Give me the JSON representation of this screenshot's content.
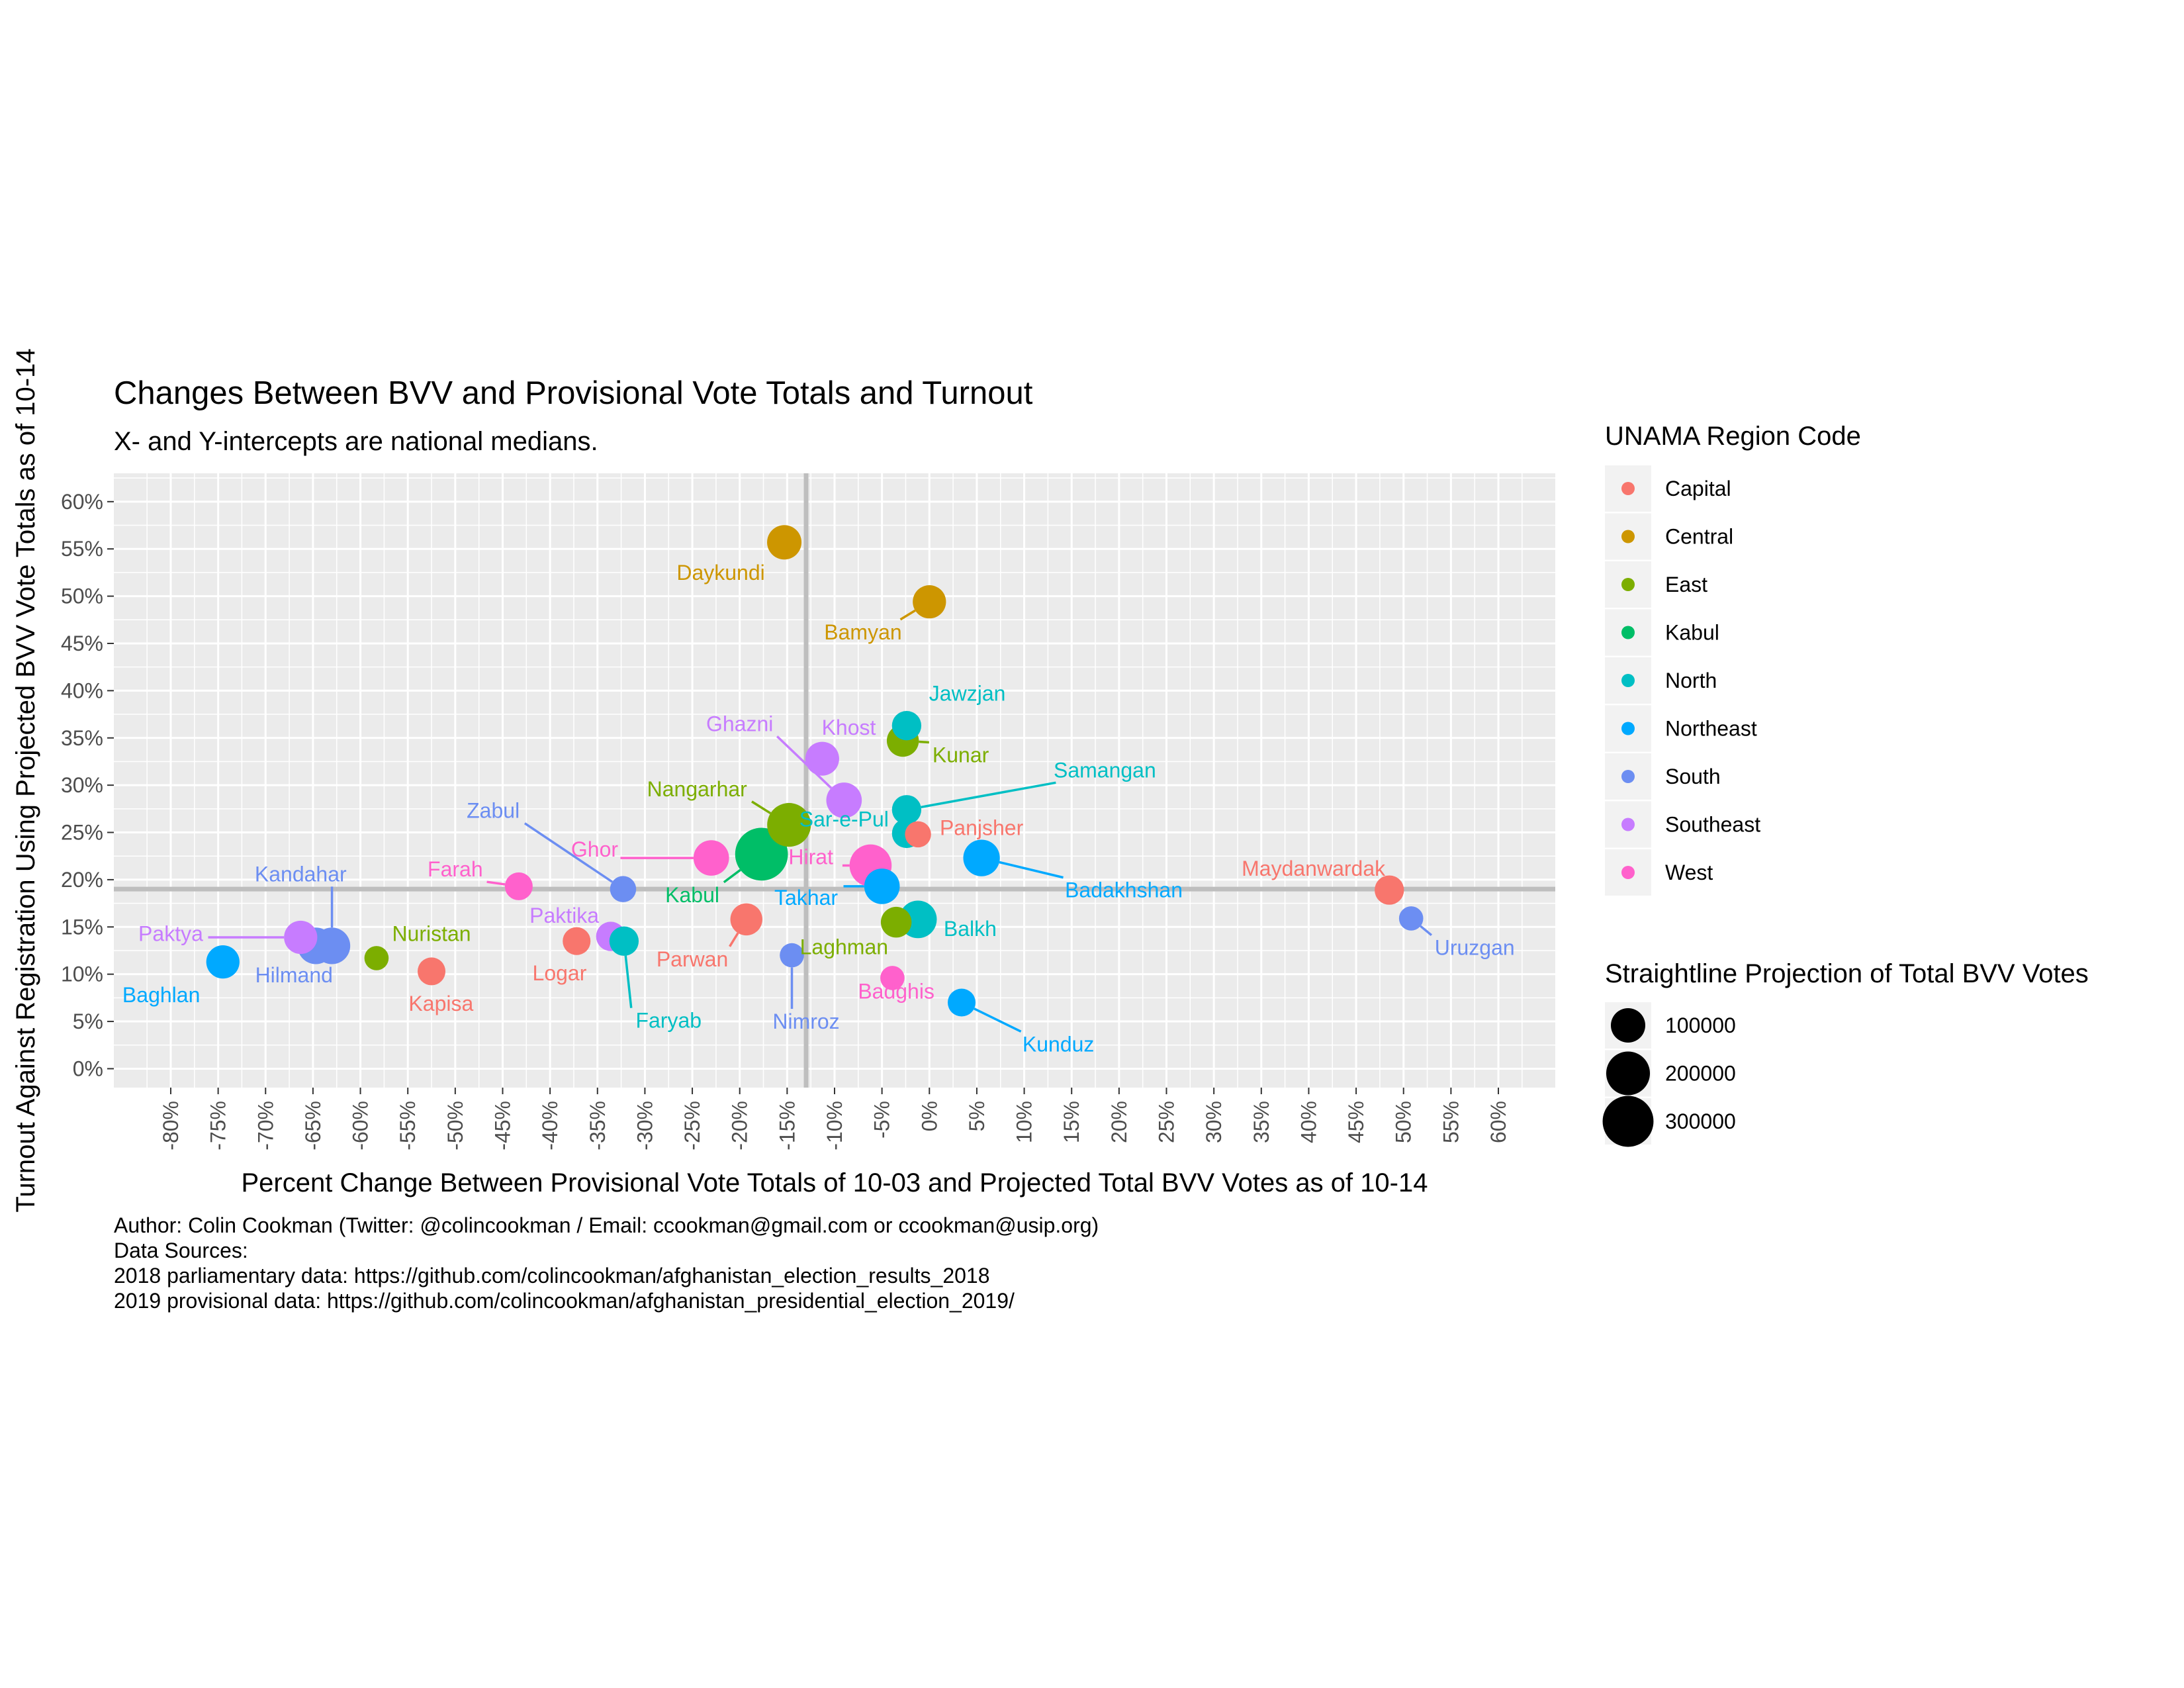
{
  "chart_data": {
    "type": "scatter",
    "title": "Changes Between BVV and Provisional Vote Totals and Turnout",
    "subtitle": "X- and Y-intercepts are national medians.",
    "xlabel": "Percent Change Between Provisional Vote Totals of 10-03 and Projected Total BVV Votes as of 10-14",
    "ylabel": "Turnout Against Registration Using Projected BVV Vote Totals as of 10-14",
    "xlim": [
      -86,
      66
    ],
    "ylim": [
      -2,
      63
    ],
    "x_ticks": [
      -80,
      -75,
      -70,
      -65,
      -60,
      -55,
      -50,
      -45,
      -40,
      -35,
      -30,
      -25,
      -20,
      -15,
      -10,
      -5,
      0,
      5,
      10,
      15,
      20,
      25,
      30,
      35,
      40,
      45,
      50,
      55,
      60
    ],
    "x_tick_labels": [
      "-80%",
      "-75%",
      "-70%",
      "-65%",
      "-60%",
      "-55%",
      "-50%",
      "-45%",
      "-40%",
      "-35%",
      "-30%",
      "-25%",
      "-20%",
      "-15%",
      "-10%",
      "-5%",
      "0%",
      "5%",
      "10%",
      "15%",
      "20%",
      "25%",
      "30%",
      "35%",
      "40%",
      "45%",
      "50%",
      "55%",
      "60%"
    ],
    "y_ticks": [
      0,
      5,
      10,
      15,
      20,
      25,
      30,
      35,
      40,
      45,
      50,
      55,
      60
    ],
    "y_tick_labels": [
      "0%",
      "5%",
      "10%",
      "15%",
      "20%",
      "25%",
      "30%",
      "35%",
      "40%",
      "45%",
      "50%",
      "55%",
      "60%"
    ],
    "x_median": -13,
    "y_median": 19,
    "grid": true,
    "legend_color_title": "UNAMA Region Code",
    "legend_size_title": "Straightline Projection of Total BVV Votes",
    "legend_placement": "right",
    "regions": [
      {
        "name": "Capital",
        "color": "#F8766D"
      },
      {
        "name": "Central",
        "color": "#CD9600"
      },
      {
        "name": "East",
        "color": "#7CAE00"
      },
      {
        "name": "Kabul",
        "color": "#00BE67"
      },
      {
        "name": "North",
        "color": "#00BFC4"
      },
      {
        "name": "Northeast",
        "color": "#00A9FF"
      },
      {
        "name": "South",
        "color": "#6C8EF2"
      },
      {
        "name": "Southeast",
        "color": "#C77CFF"
      },
      {
        "name": "West",
        "color": "#FF61CC"
      }
    ],
    "size_legend": [
      {
        "label": "100000",
        "value": 100000
      },
      {
        "label": "200000",
        "value": 200000
      },
      {
        "label": "300000",
        "value": 300000
      }
    ],
    "points": [
      {
        "name": "Daykundi",
        "region": "Central",
        "x": -15.3,
        "y": 55.7,
        "size": 100000,
        "lx": -22,
        "ly": 52.5
      },
      {
        "name": "Bamyan",
        "region": "Central",
        "x": 0,
        "y": 49.4,
        "size": 90000,
        "lx": -7,
        "ly": 46.2
      },
      {
        "name": "Jawzjan",
        "region": "North",
        "x": -2.4,
        "y": 36.3,
        "size": 60000,
        "lx": 4,
        "ly": 39.7
      },
      {
        "name": "Khost",
        "region": "Southeast",
        "x": -11.3,
        "y": 32.8,
        "size": 95000,
        "lx": -8.5,
        "ly": 36.1
      },
      {
        "name": "Kunar",
        "region": "East",
        "x": -2.8,
        "y": 34.7,
        "size": 80000,
        "lx": 3.3,
        "ly": 33.2
      },
      {
        "name": "Ghazni",
        "region": "Southeast",
        "x": -9,
        "y": 28.4,
        "size": 110000,
        "lx": -20,
        "ly": 36.5
      },
      {
        "name": "Samangan",
        "region": "North",
        "x": -2.4,
        "y": 27.4,
        "size": 60000,
        "lx": 18.5,
        "ly": 31.6
      },
      {
        "name": "Nangarhar",
        "region": "East",
        "x": -14.8,
        "y": 25.8,
        "size": 200000,
        "lx": -24.5,
        "ly": 29.6
      },
      {
        "name": "Sar-e-Pul",
        "region": "North",
        "x": -2.4,
        "y": 24.9,
        "size": 60000,
        "lx": -9,
        "ly": 26.4
      },
      {
        "name": "Panjsher",
        "region": "Capital",
        "x": -1.2,
        "y": 24.8,
        "size": 40000,
        "lx": 5.5,
        "ly": 25.5
      },
      {
        "name": "Zabul",
        "region": "South",
        "x": -32.3,
        "y": 19,
        "size": 40000,
        "lx": -46,
        "ly": 27.3
      },
      {
        "name": "Ghor",
        "region": "West",
        "x": -23,
        "y": 22.3,
        "size": 110000,
        "lx": -35.3,
        "ly": 23.2
      },
      {
        "name": "Hirat",
        "region": "West",
        "x": -6.2,
        "y": 21.5,
        "size": 180000,
        "lx": -12.5,
        "ly": 22.4
      },
      {
        "name": "Badakhshan",
        "region": "Northeast",
        "x": 5.5,
        "y": 22.3,
        "size": 120000,
        "lx": 20.5,
        "ly": 18.9
      },
      {
        "name": "Farah",
        "region": "West",
        "x": -43.3,
        "y": 19.3,
        "size": 50000,
        "lx": -50,
        "ly": 21.1
      },
      {
        "name": "Kandahar",
        "region": "South",
        "x": -63,
        "y": 13,
        "size": 120000,
        "lx": -66.3,
        "ly": 20.6
      },
      {
        "name": "Kabul",
        "region": "Kabul",
        "x": -17.7,
        "y": 22.7,
        "size": 330000,
        "lx": -25,
        "ly": 18.4
      },
      {
        "name": "Takhar",
        "region": "Northeast",
        "x": -5,
        "y": 19.3,
        "size": 110000,
        "lx": -13,
        "ly": 18.1
      },
      {
        "name": "Maydanwardak",
        "region": "Capital",
        "x": 48.5,
        "y": 18.9,
        "size": 60000,
        "lx": 40.5,
        "ly": 21.2
      },
      {
        "name": "Paktika",
        "region": "Southeast",
        "x": -33.6,
        "y": 14,
        "size": 60000,
        "lx": -38.5,
        "ly": 16.2
      },
      {
        "name": "Paktya",
        "region": "Southeast",
        "x": -66.3,
        "y": 13.9,
        "size": 90000,
        "lx": -80,
        "ly": 14.3
      },
      {
        "name": "Nuristan",
        "region": "East",
        "x": -58.3,
        "y": 11.7,
        "size": 30000,
        "lx": -52.5,
        "ly": 14.3
      },
      {
        "name": "Logar",
        "region": "Capital",
        "x": -37.2,
        "y": 13.5,
        "size": 50000,
        "lx": -39,
        "ly": 10.1
      },
      {
        "name": "Faryab",
        "region": "North",
        "x": -32.2,
        "y": 13.5,
        "size": 60000,
        "lx": -27.5,
        "ly": 5.1
      },
      {
        "name": "Parwan",
        "region": "Capital",
        "x": -19.3,
        "y": 15.8,
        "size": 80000,
        "lx": -25,
        "ly": 11.6
      },
      {
        "name": "Laghman",
        "region": "East",
        "x": -3.5,
        "y": 15.5,
        "size": 70000,
        "lx": -9,
        "ly": 12.9
      },
      {
        "name": "Balkh",
        "region": "North",
        "x": -1.2,
        "y": 15.8,
        "size": 130000,
        "lx": 4.3,
        "ly": 14.8
      },
      {
        "name": "Hilmand",
        "region": "South",
        "x": -64.7,
        "y": 13,
        "size": 120000,
        "lx": -67,
        "ly": 9.9
      },
      {
        "name": "Baghlan",
        "region": "Northeast",
        "x": -74.5,
        "y": 11.3,
        "size": 90000,
        "lx": -81,
        "ly": 7.8
      },
      {
        "name": "Kapisa",
        "region": "Capital",
        "x": -52.5,
        "y": 10.3,
        "size": 50000,
        "lx": -51.5,
        "ly": 6.9
      },
      {
        "name": "Nimroz",
        "region": "South",
        "x": -14.5,
        "y": 12,
        "size": 30000,
        "lx": -13,
        "ly": 5
      },
      {
        "name": "Badghis",
        "region": "West",
        "x": -3.9,
        "y": 9.6,
        "size": 30000,
        "lx": -3.5,
        "ly": 8.2
      },
      {
        "name": "Kunduz",
        "region": "Northeast",
        "x": 3.4,
        "y": 7,
        "size": 50000,
        "lx": 13.6,
        "ly": 2.6
      },
      {
        "name": "Uruzgan",
        "region": "South",
        "x": 50.8,
        "y": 15.9,
        "size": 30000,
        "lx": 57.5,
        "ly": 12.8
      }
    ]
  },
  "caption": {
    "author": "Author: Colin Cookman (Twitter: @colincookman / Email: ccookman@gmail.com or ccookman@usip.org)",
    "sources_title": "Data Sources:",
    "source_1": "2018 parliamentary data: https://github.com/colincookman/afghanistan_election_results_2018",
    "source_2": "2019 provisional data: https://github.com/colincookman/afghanistan_presidential_election_2019/"
  }
}
